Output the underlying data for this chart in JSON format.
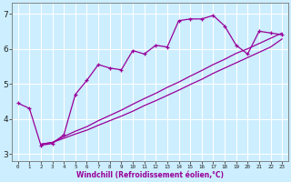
{
  "title": "",
  "xlabel": "Windchill (Refroidissement éolien,°C)",
  "bg_color": "#cceeff",
  "line_color": "#990099",
  "grid_color": "#ffffff",
  "xlim": [
    -0.5,
    23.5
  ],
  "ylim": [
    2.8,
    7.3
  ],
  "xticks": [
    0,
    1,
    2,
    3,
    4,
    5,
    6,
    7,
    8,
    9,
    10,
    11,
    12,
    13,
    14,
    15,
    16,
    17,
    18,
    19,
    20,
    21,
    22,
    23
  ],
  "yticks": [
    3,
    4,
    5,
    6,
    7
  ],
  "series1_x": [
    0,
    1,
    2,
    3,
    4,
    5,
    6,
    7,
    8,
    9,
    10,
    11,
    12,
    13,
    14,
    15,
    16,
    17,
    18,
    19,
    20,
    21,
    22,
    23
  ],
  "series1_y": [
    4.45,
    4.3,
    3.25,
    3.3,
    3.55,
    4.7,
    5.1,
    5.55,
    5.45,
    5.4,
    5.95,
    5.85,
    6.1,
    6.05,
    6.8,
    6.85,
    6.85,
    6.95,
    6.65,
    6.1,
    5.85,
    6.5,
    6.45,
    6.4
  ],
  "series2_x": [
    2,
    3,
    4,
    5,
    6,
    7,
    8,
    9,
    10,
    11,
    12,
    13,
    14,
    15,
    16,
    17,
    18,
    19,
    20,
    21,
    22,
    23
  ],
  "series2_y": [
    3.28,
    3.33,
    3.5,
    3.65,
    3.78,
    3.95,
    4.1,
    4.25,
    4.42,
    4.58,
    4.73,
    4.9,
    5.05,
    5.22,
    5.38,
    5.55,
    5.7,
    5.87,
    6.0,
    6.15,
    6.3,
    6.45
  ],
  "series3_x": [
    2,
    3,
    4,
    5,
    6,
    7,
    8,
    9,
    10,
    11,
    12,
    13,
    14,
    15,
    16,
    17,
    18,
    19,
    20,
    21,
    22,
    23
  ],
  "series3_y": [
    3.28,
    3.33,
    3.45,
    3.57,
    3.68,
    3.82,
    3.95,
    4.08,
    4.22,
    4.38,
    4.52,
    4.67,
    4.82,
    4.98,
    5.13,
    5.3,
    5.45,
    5.6,
    5.75,
    5.9,
    6.05,
    6.28
  ],
  "xlabel_fontsize": 5.5,
  "ytick_fontsize": 6.5,
  "xtick_fontsize": 4.2
}
